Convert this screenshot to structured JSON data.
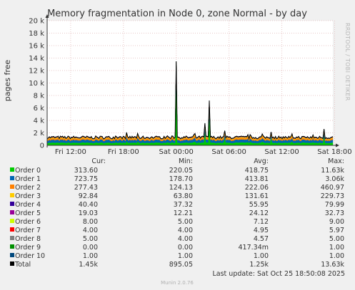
{
  "chart_data": {
    "type": "area",
    "title": "Memory fragmentation in Node 0, zone Normal - by day",
    "ylabel": "pages free",
    "ylim": [
      0,
      20000
    ],
    "yticks": [
      {
        "value": 0,
        "label": "0"
      },
      {
        "value": 2000,
        "label": "2 k"
      },
      {
        "value": 4000,
        "label": "4 k"
      },
      {
        "value": 6000,
        "label": "6 k"
      },
      {
        "value": 8000,
        "label": "8 k"
      },
      {
        "value": 10000,
        "label": "10 k"
      },
      {
        "value": 12000,
        "label": "12 k"
      },
      {
        "value": 14000,
        "label": "14 k"
      },
      {
        "value": 16000,
        "label": "16 k"
      },
      {
        "value": 18000,
        "label": "18 k"
      },
      {
        "value": 20000,
        "label": "20 k"
      }
    ],
    "xrange_hours": [
      -2.67,
      29.8
    ],
    "xticks": [
      {
        "hour": 0,
        "label": "Fri 12:00"
      },
      {
        "hour": 6,
        "label": "Fri 18:00"
      },
      {
        "hour": 12,
        "label": "Sat 00:00"
      },
      {
        "hour": 18,
        "label": "Sat 06:00"
      },
      {
        "hour": 24,
        "label": "Sat 12:00"
      },
      {
        "hour": 30,
        "label": "Sat 18:00"
      }
    ],
    "grid": true,
    "x_axis_reference": "Fri 12:00",
    "spikes": [
      {
        "hour": 12,
        "total": 13630
      },
      {
        "hour": 15.8,
        "total": 7200
      },
      {
        "hour": 15.3,
        "total": 3500
      },
      {
        "hour": 28.8,
        "total": 2600
      },
      {
        "hour": 22.8,
        "total": 2300
      },
      {
        "hour": 17.5,
        "total": 2200
      }
    ],
    "legend_columns": [
      "Cur:",
      "Min:",
      "Avg:",
      "Max:"
    ],
    "series": [
      {
        "name": "Order 0",
        "color": "#00cc00",
        "cur": "313.60",
        "min": "220.05",
        "avg": "418.75",
        "max": "11.63k"
      },
      {
        "name": "Order 1",
        "color": "#0066b3",
        "cur": "723.75",
        "min": "178.70",
        "avg": "413.81",
        "max": "3.06k"
      },
      {
        "name": "Order 2",
        "color": "#ff8000",
        "cur": "277.43",
        "min": "124.13",
        "avg": "222.06",
        "max": "460.97"
      },
      {
        "name": "Order 3",
        "color": "#ffcc00",
        "cur": "92.84",
        "min": "63.80",
        "avg": "131.61",
        "max": "229.73"
      },
      {
        "name": "Order 4",
        "color": "#330099",
        "cur": "40.40",
        "min": "37.32",
        "avg": "55.95",
        "max": "79.99"
      },
      {
        "name": "Order 5",
        "color": "#990099",
        "cur": "19.03",
        "min": "12.21",
        "avg": "24.12",
        "max": "32.73"
      },
      {
        "name": "Order 6",
        "color": "#ccff00",
        "cur": "8.00",
        "min": "5.00",
        "avg": "7.12",
        "max": "9.00"
      },
      {
        "name": "Order 7",
        "color": "#ff0000",
        "cur": "4.00",
        "min": "4.00",
        "avg": "4.95",
        "max": "5.97"
      },
      {
        "name": "Order 8",
        "color": "#808080",
        "cur": "5.00",
        "min": "4.00",
        "avg": "4.57",
        "max": "5.00"
      },
      {
        "name": "Order 9",
        "color": "#008f00",
        "cur": "0.00",
        "min": "0.00",
        "avg": "417.34m",
        "max": "1.00"
      },
      {
        "name": "Order 10",
        "color": "#00487d",
        "cur": "1.00",
        "min": "1.00",
        "avg": "1.00",
        "max": "1.00"
      },
      {
        "name": "Total",
        "color": "#000000",
        "cur": "1.45k",
        "min": "895.05",
        "avg": "1.25k",
        "max": "13.63k"
      }
    ]
  },
  "watermark": "RRDTOOL / TOBI OETIKER",
  "last_update": "Last update: Sat Oct 25 18:50:08 2025",
  "footer": "Munin 2.0.76"
}
